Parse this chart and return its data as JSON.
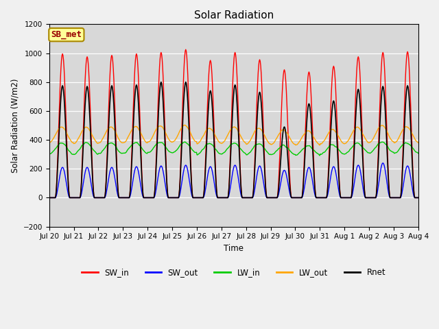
{
  "title": "Solar Radiation",
  "ylabel": "Solar Radiation (W/m2)",
  "xlabel": "Time",
  "ylim": [
    -200,
    1200
  ],
  "yticks": [
    -200,
    0,
    200,
    400,
    600,
    800,
    1000,
    1200
  ],
  "figure_bg": "#f0f0f0",
  "plot_bg": "#d8d8d8",
  "grid_color": "#ffffff",
  "annotation_text": "SB_met",
  "annotation_bg": "#ffff99",
  "annotation_edge": "#aa8800",
  "annotation_text_color": "#990000",
  "colors": {
    "SW_in": "#ff0000",
    "SW_out": "#0000ff",
    "LW_in": "#00cc00",
    "LW_out": "#ffa500",
    "Rnet": "#000000"
  },
  "n_days": 15,
  "tick_labels": [
    "Jul 20",
    "Jul 21",
    "Jul 22",
    "Jul 23",
    "Jul 24",
    "Jul 25",
    "Jul 26",
    "Jul 27",
    "Jul 28",
    "Jul 29",
    "Jul 30",
    "Jul 31",
    "Aug 1",
    "Aug 2",
    "Aug 3",
    "Aug 4"
  ],
  "SW_in_peaks": [
    995,
    975,
    985,
    995,
    1005,
    1025,
    950,
    1005,
    955,
    885,
    870,
    910,
    975,
    1005,
    1010
  ],
  "SW_out_peaks": [
    210,
    210,
    210,
    215,
    220,
    225,
    215,
    225,
    220,
    190,
    210,
    215,
    225,
    240,
    220
  ],
  "LW_in_base": [
    300,
    300,
    305,
    308,
    310,
    310,
    300,
    305,
    300,
    298,
    295,
    300,
    308,
    312,
    308
  ],
  "LW_in_daypeak": [
    380,
    380,
    380,
    382,
    385,
    385,
    375,
    378,
    372,
    360,
    358,
    365,
    378,
    385,
    380
  ],
  "LW_out_base": [
    380,
    375,
    378,
    380,
    383,
    385,
    375,
    378,
    372,
    368,
    365,
    372,
    378,
    385,
    380
  ],
  "LW_out_daypeak": [
    490,
    487,
    490,
    493,
    498,
    502,
    480,
    490,
    480,
    468,
    462,
    472,
    488,
    500,
    492
  ],
  "Rnet_peaks": [
    775,
    770,
    775,
    780,
    800,
    800,
    740,
    780,
    730,
    490,
    650,
    670,
    750,
    770,
    775
  ]
}
